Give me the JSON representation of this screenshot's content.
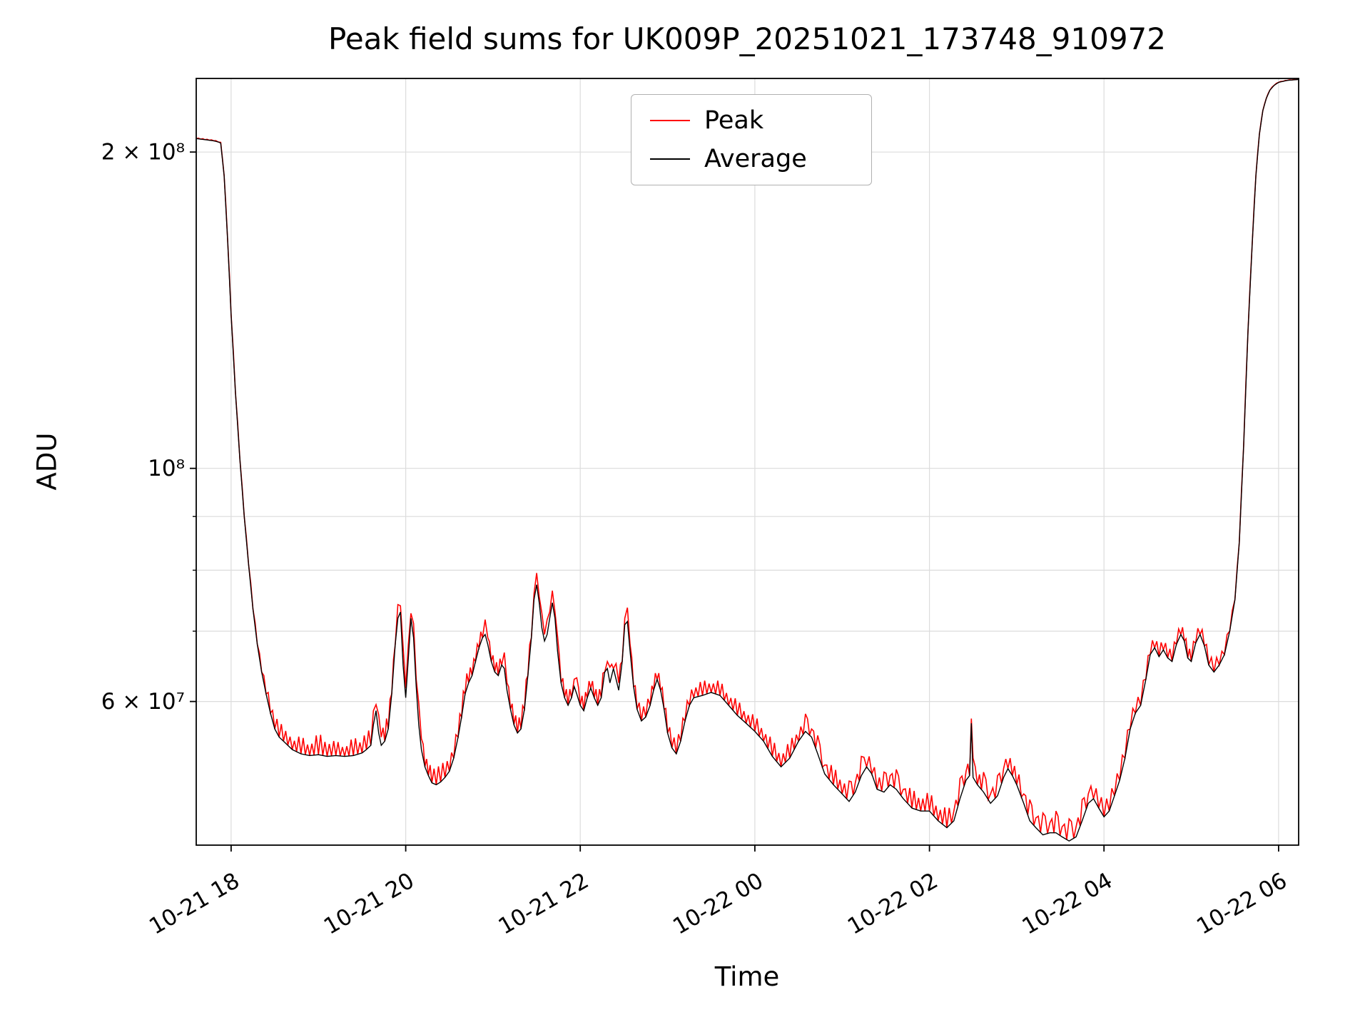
{
  "chart_data": {
    "type": "line",
    "title": "Peak field sums for UK009P_20251021_173748_910972",
    "xlabel": "Time",
    "ylabel": "ADU",
    "legend_position": "upper center",
    "grid": true,
    "y_scale": "log",
    "x_unit": "hours since 10-21 00:00",
    "value_scale": 10000000,
    "xlim": [
      17.6,
      30.23
    ],
    "ylim": [
      43800000,
      235000000
    ],
    "xticks": [
      {
        "v": 18,
        "label": "10-21 18"
      },
      {
        "v": 20,
        "label": "10-21 20"
      },
      {
        "v": 22,
        "label": "10-21 22"
      },
      {
        "v": 24,
        "label": "10-22 00"
      },
      {
        "v": 26,
        "label": "10-22 02"
      },
      {
        "v": 28,
        "label": "10-22 04"
      },
      {
        "v": 30,
        "label": "10-22 06"
      }
    ],
    "yticks": [
      {
        "v": 60000000,
        "label": "6 × 10⁷"
      },
      {
        "v": 100000000,
        "label": "10⁸"
      },
      {
        "v": 200000000,
        "label": "2 × 10⁸"
      }
    ],
    "ygrid": [
      60000000,
      70000000,
      80000000,
      90000000,
      100000000,
      200000000
    ],
    "series": [
      {
        "name": "Peak",
        "color": "#ff0000"
      },
      {
        "name": "Average",
        "color": "#000000"
      }
    ],
    "points_format": [
      "t_hours",
      "average_x1e7",
      "peak_x1e7"
    ],
    "points": [
      [
        17.6,
        20.6,
        20.63
      ],
      [
        17.7,
        20.55,
        20.58
      ],
      [
        17.8,
        20.5,
        20.53
      ],
      [
        17.85,
        20.45,
        20.48
      ],
      [
        17.88,
        20.4,
        20.43
      ],
      [
        17.92,
        19.0,
        19.03
      ],
      [
        17.96,
        16.5,
        16.53
      ],
      [
        18.0,
        14.0,
        14.03
      ],
      [
        18.05,
        11.8,
        11.83
      ],
      [
        18.1,
        10.2,
        10.24
      ],
      [
        18.15,
        9.0,
        9.04
      ],
      [
        18.2,
        8.1,
        8.14
      ],
      [
        18.25,
        7.35,
        7.4
      ],
      [
        18.3,
        6.8,
        6.86
      ],
      [
        18.35,
        6.4,
        6.48
      ],
      [
        18.4,
        6.1,
        6.22
      ],
      [
        18.45,
        5.85,
        6.02
      ],
      [
        18.5,
        5.65,
        5.75
      ],
      [
        18.55,
        5.55,
        5.8
      ],
      [
        18.6,
        5.5,
        5.62
      ],
      [
        18.65,
        5.45,
        5.63
      ],
      [
        18.7,
        5.4,
        5.48
      ],
      [
        18.8,
        5.35,
        5.58
      ],
      [
        18.9,
        5.33,
        5.42
      ],
      [
        19.0,
        5.34,
        5.62
      ],
      [
        19.1,
        5.32,
        5.45
      ],
      [
        19.2,
        5.33,
        5.52
      ],
      [
        19.3,
        5.32,
        5.4
      ],
      [
        19.4,
        5.33,
        5.56
      ],
      [
        19.5,
        5.36,
        5.46
      ],
      [
        19.55,
        5.4,
        5.68
      ],
      [
        19.6,
        5.45,
        5.58
      ],
      [
        19.63,
        5.7,
        5.88
      ],
      [
        19.66,
        5.88,
        5.96
      ],
      [
        19.69,
        5.6,
        5.83
      ],
      [
        19.72,
        5.45,
        5.55
      ],
      [
        19.76,
        5.5,
        5.78
      ],
      [
        19.8,
        5.65,
        5.78
      ],
      [
        19.84,
        6.1,
        6.28
      ],
      [
        19.88,
        6.8,
        6.88
      ],
      [
        19.91,
        7.2,
        7.42
      ],
      [
        19.94,
        7.3,
        7.4
      ],
      [
        19.97,
        6.5,
        6.78
      ],
      [
        20.0,
        6.05,
        6.18
      ],
      [
        20.03,
        6.6,
        6.8
      ],
      [
        20.06,
        7.2,
        7.28
      ],
      [
        20.09,
        6.9,
        7.12
      ],
      [
        20.12,
        6.2,
        6.3
      ],
      [
        20.15,
        5.7,
        5.98
      ],
      [
        20.18,
        5.4,
        5.53
      ],
      [
        20.22,
        5.2,
        5.4
      ],
      [
        20.26,
        5.1,
        5.18
      ],
      [
        20.3,
        5.02,
        5.26
      ],
      [
        20.35,
        5.0,
        5.1
      ],
      [
        20.4,
        5.03,
        5.31
      ],
      [
        20.45,
        5.08,
        5.18
      ],
      [
        20.5,
        5.15,
        5.35
      ],
      [
        20.55,
        5.3,
        5.38
      ],
      [
        20.6,
        5.55,
        5.78
      ],
      [
        20.64,
        5.8,
        5.9
      ],
      [
        20.68,
        6.1,
        6.38
      ],
      [
        20.72,
        6.25,
        6.38
      ],
      [
        20.76,
        6.35,
        6.55
      ],
      [
        20.8,
        6.55,
        6.63
      ],
      [
        20.84,
        6.75,
        6.98
      ],
      [
        20.88,
        6.9,
        7.0
      ],
      [
        20.91,
        6.95,
        7.18
      ],
      [
        20.94,
        6.8,
        6.9
      ],
      [
        20.98,
        6.55,
        6.78
      ],
      [
        21.02,
        6.4,
        6.5
      ],
      [
        21.06,
        6.35,
        6.58
      ],
      [
        21.1,
        6.5,
        6.6
      ],
      [
        21.13,
        6.45,
        6.68
      ],
      [
        21.16,
        6.15,
        6.25
      ],
      [
        21.2,
        5.9,
        6.14
      ],
      [
        21.24,
        5.7,
        5.8
      ],
      [
        21.28,
        5.6,
        5.84
      ],
      [
        21.32,
        5.65,
        5.75
      ],
      [
        21.36,
        5.9,
        6.14
      ],
      [
        21.4,
        6.35,
        6.45
      ],
      [
        21.44,
        6.9,
        7.14
      ],
      [
        21.47,
        7.5,
        7.6
      ],
      [
        21.5,
        7.75,
        7.95
      ],
      [
        21.53,
        7.45,
        7.55
      ],
      [
        21.56,
        7.05,
        7.28
      ],
      [
        21.59,
        6.85,
        6.95
      ],
      [
        21.62,
        6.95,
        7.18
      ],
      [
        21.65,
        7.2,
        7.3
      ],
      [
        21.68,
        7.45,
        7.65
      ],
      [
        21.71,
        7.2,
        7.3
      ],
      [
        21.74,
        6.7,
        6.92
      ],
      [
        21.78,
        6.25,
        6.35
      ],
      [
        21.82,
        6.05,
        6.28
      ],
      [
        21.86,
        5.95,
        6.05
      ],
      [
        21.9,
        6.05,
        6.28
      ],
      [
        21.93,
        6.2,
        6.3
      ],
      [
        21.96,
        6.1,
        6.32
      ],
      [
        22.0,
        5.95,
        6.05
      ],
      [
        22.04,
        5.88,
        6.1
      ],
      [
        22.08,
        6.05,
        6.15
      ],
      [
        22.12,
        6.18,
        6.4
      ],
      [
        22.16,
        6.05,
        6.15
      ],
      [
        22.2,
        5.95,
        6.18
      ],
      [
        22.24,
        6.05,
        6.15
      ],
      [
        22.28,
        6.4,
        6.62
      ],
      [
        22.31,
        6.45,
        6.55
      ],
      [
        22.34,
        6.25,
        6.47
      ],
      [
        22.38,
        6.45,
        6.55
      ],
      [
        22.41,
        6.3,
        6.52
      ],
      [
        22.44,
        6.15,
        6.25
      ],
      [
        22.48,
        6.55,
        6.77
      ],
      [
        22.51,
        7.1,
        7.2
      ],
      [
        22.54,
        7.15,
        7.37
      ],
      [
        22.57,
        6.7,
        6.8
      ],
      [
        22.61,
        6.2,
        6.42
      ],
      [
        22.65,
        5.9,
        6.0
      ],
      [
        22.7,
        5.75,
        5.97
      ],
      [
        22.75,
        5.8,
        5.9
      ],
      [
        22.8,
        5.95,
        6.17
      ],
      [
        22.84,
        6.15,
        6.25
      ],
      [
        22.88,
        6.3,
        6.52
      ],
      [
        22.92,
        6.15,
        6.25
      ],
      [
        22.96,
        5.9,
        6.12
      ],
      [
        23.0,
        5.6,
        5.7
      ],
      [
        23.05,
        5.42,
        5.64
      ],
      [
        23.1,
        5.35,
        5.45
      ],
      [
        23.15,
        5.5,
        5.72
      ],
      [
        23.2,
        5.75,
        5.85
      ],
      [
        23.25,
        5.95,
        6.17
      ],
      [
        23.3,
        6.05,
        6.15
      ],
      [
        23.4,
        6.08,
        6.3
      ],
      [
        23.5,
        6.12,
        6.22
      ],
      [
        23.6,
        6.08,
        6.3
      ],
      [
        23.7,
        5.95,
        6.05
      ],
      [
        23.8,
        5.82,
        6.04
      ],
      [
        23.9,
        5.72,
        5.82
      ],
      [
        24.0,
        5.62,
        5.84
      ],
      [
        24.1,
        5.5,
        5.6
      ],
      [
        24.2,
        5.32,
        5.54
      ],
      [
        24.3,
        5.2,
        5.3
      ],
      [
        24.4,
        5.3,
        5.52
      ],
      [
        24.5,
        5.5,
        5.6
      ],
      [
        24.58,
        5.62,
        5.84
      ],
      [
        24.65,
        5.55,
        5.65
      ],
      [
        24.72,
        5.35,
        5.57
      ],
      [
        24.8,
        5.12,
        5.22
      ],
      [
        24.9,
        5.0,
        5.22
      ],
      [
        25.0,
        4.9,
        5.0
      ],
      [
        25.08,
        4.82,
        5.04
      ],
      [
        25.15,
        4.92,
        5.02
      ],
      [
        25.22,
        5.1,
        5.32
      ],
      [
        25.28,
        5.2,
        5.3
      ],
      [
        25.34,
        5.12,
        5.34
      ],
      [
        25.4,
        4.95,
        5.05
      ],
      [
        25.48,
        4.92,
        5.14
      ],
      [
        25.55,
        5.0,
        5.1
      ],
      [
        25.62,
        4.95,
        5.17
      ],
      [
        25.7,
        4.85,
        4.95
      ],
      [
        25.8,
        4.75,
        4.97
      ],
      [
        25.9,
        4.72,
        4.82
      ],
      [
        26.0,
        4.72,
        4.94
      ],
      [
        26.1,
        4.62,
        4.72
      ],
      [
        26.2,
        4.55,
        4.77
      ],
      [
        26.28,
        4.62,
        4.72
      ],
      [
        26.35,
        4.85,
        5.07
      ],
      [
        26.42,
        5.05,
        5.15
      ],
      [
        26.46,
        5.1,
        5.32
      ],
      [
        26.48,
        5.72,
        5.78
      ],
      [
        26.5,
        5.08,
        5.3
      ],
      [
        26.55,
        5.0,
        5.1
      ],
      [
        26.62,
        4.92,
        5.14
      ],
      [
        26.7,
        4.8,
        4.9
      ],
      [
        26.78,
        4.88,
        5.1
      ],
      [
        26.85,
        5.08,
        5.18
      ],
      [
        26.9,
        5.18,
        5.4
      ],
      [
        26.95,
        5.1,
        5.2
      ],
      [
        27.0,
        5.0,
        5.22
      ],
      [
        27.08,
        4.8,
        4.9
      ],
      [
        27.15,
        4.62,
        4.84
      ],
      [
        27.22,
        4.55,
        4.65
      ],
      [
        27.3,
        4.48,
        4.7
      ],
      [
        27.38,
        4.5,
        4.6
      ],
      [
        27.45,
        4.5,
        4.72
      ],
      [
        27.52,
        4.46,
        4.56
      ],
      [
        27.6,
        4.42,
        4.64
      ],
      [
        27.68,
        4.46,
        4.56
      ],
      [
        27.75,
        4.62,
        4.84
      ],
      [
        27.82,
        4.8,
        4.9
      ],
      [
        27.88,
        4.85,
        5.07
      ],
      [
        27.94,
        4.75,
        4.85
      ],
      [
        28.0,
        4.66,
        4.88
      ],
      [
        28.06,
        4.72,
        4.82
      ],
      [
        28.12,
        4.88,
        5.1
      ],
      [
        28.18,
        5.05,
        5.15
      ],
      [
        28.24,
        5.3,
        5.52
      ],
      [
        28.3,
        5.65,
        5.75
      ],
      [
        28.36,
        5.85,
        6.07
      ],
      [
        28.42,
        5.95,
        6.05
      ],
      [
        28.48,
        6.3,
        6.52
      ],
      [
        28.53,
        6.65,
        6.75
      ],
      [
        28.58,
        6.75,
        6.97
      ],
      [
        28.63,
        6.62,
        6.72
      ],
      [
        28.68,
        6.72,
        6.94
      ],
      [
        28.73,
        6.6,
        6.7
      ],
      [
        28.78,
        6.55,
        6.77
      ],
      [
        28.83,
        6.8,
        6.9
      ],
      [
        28.88,
        6.95,
        7.17
      ],
      [
        28.92,
        6.85,
        6.95
      ],
      [
        28.96,
        6.6,
        6.82
      ],
      [
        29.0,
        6.55,
        6.65
      ],
      [
        29.05,
        6.82,
        7.04
      ],
      [
        29.1,
        6.95,
        7.05
      ],
      [
        29.15,
        6.78,
        7.0
      ],
      [
        29.2,
        6.5,
        6.6
      ],
      [
        29.26,
        6.4,
        6.62
      ],
      [
        29.32,
        6.5,
        6.6
      ],
      [
        29.38,
        6.65,
        6.8
      ],
      [
        29.44,
        7.0,
        7.1
      ],
      [
        29.5,
        7.5,
        7.55
      ],
      [
        29.55,
        8.5,
        8.53
      ],
      [
        29.6,
        10.5,
        10.53
      ],
      [
        29.65,
        13.5,
        13.53
      ],
      [
        29.7,
        16.5,
        16.53
      ],
      [
        29.74,
        19.0,
        19.03
      ],
      [
        29.78,
        20.8,
        20.83
      ],
      [
        29.82,
        21.9,
        21.93
      ],
      [
        29.86,
        22.5,
        22.53
      ],
      [
        29.9,
        22.9,
        22.93
      ],
      [
        29.95,
        23.15,
        23.18
      ],
      [
        30.0,
        23.3,
        23.32
      ],
      [
        30.1,
        23.4,
        23.42
      ],
      [
        30.23,
        23.45,
        23.47
      ]
    ]
  }
}
